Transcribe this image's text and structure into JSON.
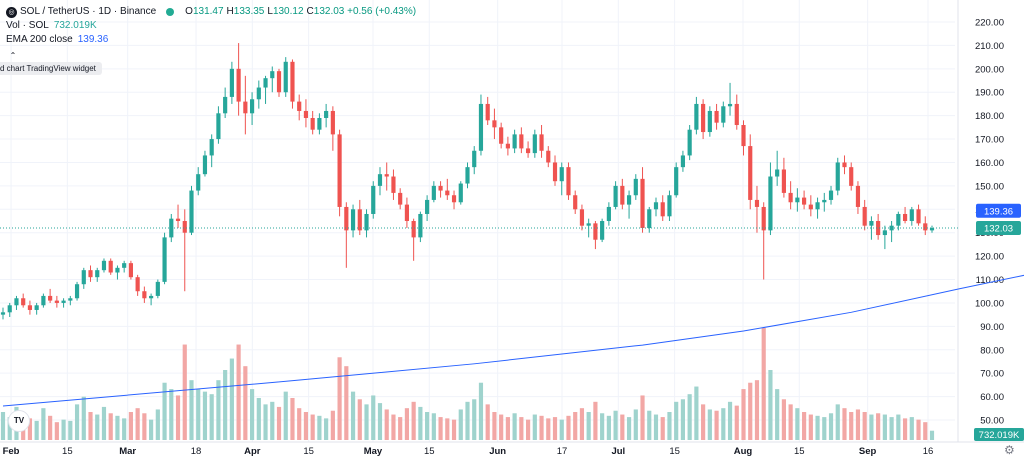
{
  "legend": {
    "symbol_logo": "◎",
    "symbol": "SOL / TetherUS · 1D · Binance",
    "open_label": "O",
    "open": "131.47",
    "high_label": "H",
    "high": "133.35",
    "low_label": "L",
    "low": "130.12",
    "close_label": "C",
    "close": "132.03 +0.56 (+0.43%)",
    "volume_label": "Vol · SOL",
    "volume": "732.019K",
    "ema_label": "EMA 200 close",
    "ema": "139.36"
  },
  "widget_tag": "d chart TradingView widget",
  "collapse_icon": "⌃",
  "tv_logo": "TV",
  "settings_icon": "⚙",
  "colors": {
    "up": "#26a69a",
    "down": "#ef5350",
    "ema": "#2962ff",
    "vol_up": "#9fd3cd",
    "vol_down": "#f2a7a5"
  },
  "chart_data": {
    "type": "candlestick",
    "title": "SOL / TetherUS · 1D · Binance",
    "y_axis": {
      "ticks": [
        "220.00",
        "210.00",
        "200.00",
        "190.00",
        "180.00",
        "170.00",
        "160.00",
        "150.00",
        "140.00",
        "130.00",
        "120.00",
        "110.00",
        "100.00",
        "90.00",
        "80.00",
        "70.00",
        "60.00",
        "50.00"
      ],
      "range": [
        45,
        223
      ]
    },
    "x_axis": {
      "ticks": [
        "Feb",
        "15",
        "Mar",
        "18",
        "Apr",
        "15",
        "May",
        "15",
        "Jun",
        "17",
        "Jul",
        "15",
        "Aug",
        "15",
        "Sep",
        "16"
      ],
      "start_date": "2024-01-30",
      "end_date": "2024-09-17"
    },
    "price_labels": {
      "ema": "139.36",
      "last": "132.03",
      "volume": "732.019K"
    },
    "volume_max": 88,
    "candles": [
      [
        95,
        98,
        93,
        96,
        22
      ],
      [
        96,
        100,
        94,
        99,
        18
      ],
      [
        99,
        103,
        97,
        102,
        26
      ],
      [
        102,
        104,
        98,
        99,
        20
      ],
      [
        99,
        101,
        95,
        97,
        17
      ],
      [
        97,
        100,
        95,
        99,
        15
      ],
      [
        99,
        104,
        98,
        103,
        25
      ],
      [
        103,
        106,
        100,
        101,
        19
      ],
      [
        101,
        103,
        98,
        100,
        14
      ],
      [
        100,
        102,
        98,
        101,
        16
      ],
      [
        101,
        103,
        99,
        102,
        15
      ],
      [
        102,
        109,
        101,
        108,
        28
      ],
      [
        108,
        115,
        106,
        114,
        34
      ],
      [
        114,
        116,
        109,
        111,
        22
      ],
      [
        111,
        115,
        109,
        114,
        20
      ],
      [
        114,
        119,
        113,
        118,
        26
      ],
      [
        118,
        119,
        112,
        113,
        21
      ],
      [
        113,
        116,
        110,
        115,
        19
      ],
      [
        115,
        118,
        113,
        117,
        17
      ],
      [
        117,
        118,
        110,
        111,
        22
      ],
      [
        111,
        112,
        103,
        105,
        25
      ],
      [
        105,
        107,
        100,
        102,
        21
      ],
      [
        102,
        104,
        99,
        103,
        16
      ],
      [
        103,
        110,
        102,
        109,
        24
      ],
      [
        109,
        130,
        108,
        128,
        45
      ],
      [
        128,
        138,
        126,
        136,
        40
      ],
      [
        136,
        142,
        132,
        135,
        35
      ],
      [
        135,
        140,
        105,
        130,
        75
      ],
      [
        130,
        150,
        129,
        148,
        47
      ],
      [
        148,
        158,
        146,
        155,
        40
      ],
      [
        155,
        165,
        154,
        163,
        38
      ],
      [
        163,
        172,
        158,
        170,
        36
      ],
      [
        170,
        184,
        168,
        181,
        47
      ],
      [
        181,
        192,
        179,
        188,
        55
      ],
      [
        188,
        203,
        185,
        200,
        64
      ],
      [
        200,
        211,
        180,
        186,
        75
      ],
      [
        186,
        197,
        172,
        181,
        58
      ],
      [
        181,
        190,
        176,
        187,
        40
      ],
      [
        187,
        195,
        183,
        192,
        33
      ],
      [
        192,
        197,
        185,
        196,
        28
      ],
      [
        196,
        201,
        190,
        199,
        30
      ],
      [
        199,
        200,
        188,
        190,
        26
      ],
      [
        190,
        205,
        188,
        203,
        38
      ],
      [
        203,
        204,
        183,
        186,
        33
      ],
      [
        186,
        189,
        178,
        182,
        25
      ],
      [
        182,
        187,
        175,
        179,
        22
      ],
      [
        179,
        182,
        172,
        174,
        20
      ],
      [
        174,
        181,
        172,
        179,
        19
      ],
      [
        179,
        185,
        175,
        182,
        17
      ],
      [
        182,
        184,
        165,
        172,
        23
      ],
      [
        172,
        174,
        137,
        141,
        65
      ],
      [
        141,
        143,
        115,
        131,
        58
      ],
      [
        131,
        142,
        128,
        140,
        38
      ],
      [
        140,
        144,
        129,
        131,
        32
      ],
      [
        131,
        140,
        128,
        138,
        28
      ],
      [
        138,
        152,
        136,
        150,
        35
      ],
      [
        150,
        158,
        146,
        155,
        29
      ],
      [
        155,
        160,
        148,
        154,
        24
      ],
      [
        154,
        157,
        144,
        147,
        20
      ],
      [
        147,
        149,
        140,
        142,
        18
      ],
      [
        142,
        145,
        132,
        135,
        25
      ],
      [
        135,
        136,
        118,
        128,
        30
      ],
      [
        128,
        139,
        126,
        138,
        26
      ],
      [
        138,
        146,
        135,
        144,
        22
      ],
      [
        144,
        152,
        143,
        150,
        21
      ],
      [
        150,
        152,
        145,
        148,
        18
      ],
      [
        148,
        153,
        144,
        146,
        17
      ],
      [
        146,
        148,
        140,
        143,
        16
      ],
      [
        143,
        152,
        142,
        151,
        24
      ],
      [
        151,
        160,
        149,
        158,
        30
      ],
      [
        158,
        167,
        155,
        165,
        32
      ],
      [
        165,
        189,
        163,
        185,
        45
      ],
      [
        185,
        188,
        176,
        178,
        28
      ],
      [
        178,
        183,
        170,
        175,
        22
      ],
      [
        175,
        177,
        166,
        168,
        20
      ],
      [
        168,
        171,
        163,
        166,
        18
      ],
      [
        166,
        174,
        164,
        172,
        21
      ],
      [
        172,
        175,
        164,
        166,
        18
      ],
      [
        166,
        169,
        162,
        164,
        16
      ],
      [
        164,
        174,
        162,
        172,
        20
      ],
      [
        172,
        176,
        162,
        165,
        19
      ],
      [
        165,
        167,
        158,
        160,
        17
      ],
      [
        160,
        163,
        150,
        152,
        18
      ],
      [
        152,
        160,
        146,
        158,
        16
      ],
      [
        158,
        160,
        144,
        146,
        19
      ],
      [
        146,
        148,
        138,
        140,
        22
      ],
      [
        140,
        142,
        131,
        133,
        25
      ],
      [
        133,
        136,
        128,
        134,
        22
      ],
      [
        134,
        135,
        123,
        127,
        30
      ],
      [
        127,
        136,
        126,
        135,
        21
      ],
      [
        135,
        143,
        133,
        141,
        19
      ],
      [
        141,
        152,
        140,
        150,
        23
      ],
      [
        150,
        153,
        140,
        142,
        20
      ],
      [
        142,
        148,
        136,
        146,
        18
      ],
      [
        146,
        155,
        144,
        153,
        24
      ],
      [
        153,
        158,
        130,
        132,
        35
      ],
      [
        132,
        141,
        130,
        140,
        23
      ],
      [
        140,
        145,
        137,
        143,
        20
      ],
      [
        143,
        146,
        135,
        137,
        18
      ],
      [
        137,
        148,
        135,
        146,
        22
      ],
      [
        146,
        160,
        145,
        158,
        30
      ],
      [
        158,
        165,
        156,
        163,
        32
      ],
      [
        163,
        176,
        161,
        174,
        36
      ],
      [
        174,
        188,
        172,
        185,
        42
      ],
      [
        185,
        187,
        170,
        173,
        28
      ],
      [
        173,
        184,
        171,
        182,
        24
      ],
      [
        182,
        185,
        174,
        177,
        23
      ],
      [
        177,
        186,
        175,
        184,
        25
      ],
      [
        184,
        194,
        180,
        185,
        30
      ],
      [
        185,
        189,
        174,
        176,
        27
      ],
      [
        176,
        178,
        163,
        167,
        40
      ],
      [
        167,
        172,
        140,
        144,
        45
      ],
      [
        144,
        150,
        130,
        141,
        47
      ],
      [
        141,
        143,
        110,
        131,
        88
      ],
      [
        131,
        160,
        129,
        154,
        55
      ],
      [
        154,
        165,
        150,
        157,
        40
      ],
      [
        157,
        162,
        145,
        147,
        32
      ],
      [
        147,
        152,
        140,
        143,
        28
      ],
      [
        143,
        149,
        139,
        145,
        25
      ],
      [
        145,
        148,
        140,
        142,
        22
      ],
      [
        142,
        146,
        137,
        140,
        20
      ],
      [
        140,
        145,
        136,
        143,
        19
      ],
      [
        143,
        147,
        139,
        144,
        18
      ],
      [
        144,
        150,
        142,
        148,
        21
      ],
      [
        148,
        162,
        146,
        160,
        28
      ],
      [
        160,
        163,
        155,
        158,
        25
      ],
      [
        158,
        160,
        148,
        150,
        22
      ],
      [
        150,
        152,
        138,
        141,
        24
      ],
      [
        141,
        144,
        131,
        133,
        22
      ],
      [
        133,
        137,
        127,
        135,
        20
      ],
      [
        135,
        138,
        127,
        129,
        21
      ],
      [
        129,
        133,
        123,
        131,
        20
      ],
      [
        131,
        135,
        126,
        133,
        18
      ],
      [
        133,
        139,
        131,
        138,
        20
      ],
      [
        138,
        141,
        134,
        135,
        17
      ],
      [
        135,
        141,
        133,
        140,
        18
      ],
      [
        140,
        142,
        133,
        134,
        16
      ],
      [
        134,
        137,
        129,
        131,
        14
      ],
      [
        131,
        133,
        130,
        132,
        7.3
      ]
    ],
    "ema": [
      [
        0,
        56
      ],
      [
        16,
        60
      ],
      [
        40,
        66
      ],
      [
        70,
        74
      ],
      [
        95,
        82
      ],
      [
        110,
        88
      ],
      [
        126,
        96
      ],
      [
        142,
        106
      ],
      [
        157,
        115
      ],
      [
        173,
        123
      ],
      [
        188,
        128
      ],
      [
        209,
        133
      ],
      [
        240,
        138
      ],
      [
        267,
        140
      ],
      [
        293,
        141.5
      ],
      [
        333,
        141.5
      ],
      [
        346,
        141
      ],
      [
        360,
        140.5
      ],
      [
        373,
        140
      ],
      [
        386,
        139.36
      ]
    ]
  }
}
